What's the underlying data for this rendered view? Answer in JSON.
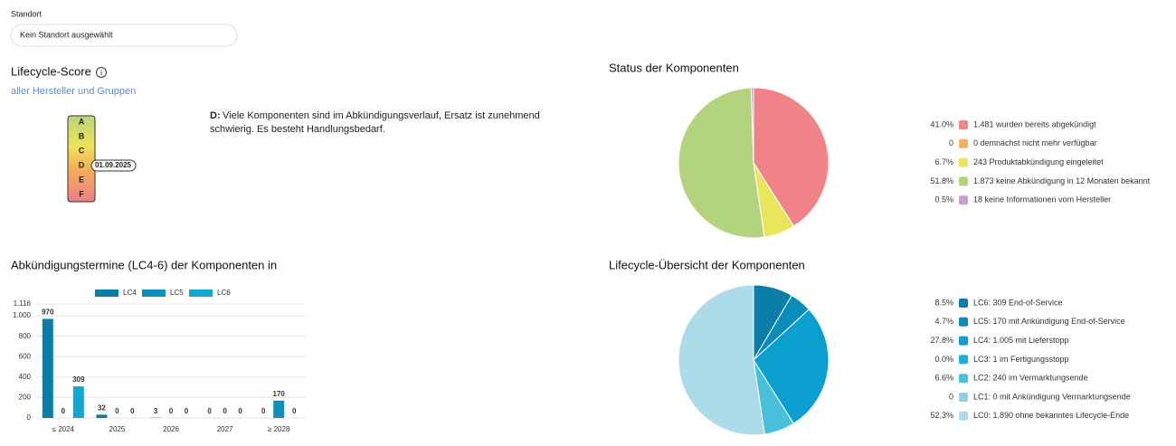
{
  "filter": {
    "label": "Standort",
    "value": "Kein Standort ausgewählt"
  },
  "score": {
    "title": "Lifecycle-Score",
    "subtitle": "aller Hersteller und Gruppen",
    "grades": [
      "A",
      "B",
      "C",
      "D",
      "E",
      "F"
    ],
    "current": "D",
    "date": "01.09.2025",
    "description": {
      "grade": "D:",
      "lines": [
        "Viele Komponenten sind im Abkündigungsverlauf, Ersatz ist zunehmend",
        "schwierig. Es besteht Handlungsbedarf."
      ]
    }
  },
  "chart_data": [
    {
      "type": "bar",
      "title": "Abkündigungstermine (LC4-6) der Komponenten in",
      "categories": [
        "≤ 2024",
        "2025",
        "2026",
        "2027",
        "≥ 2028"
      ],
      "series": [
        {
          "name": "LC4",
          "color": "#0a7ea8",
          "values": [
            970,
            32,
            3,
            0,
            0
          ]
        },
        {
          "name": "LC5",
          "color": "#0b8fbb",
          "values": [
            0,
            0,
            0,
            0,
            170
          ]
        },
        {
          "name": "LC6",
          "color": "#13a6d0",
          "values": [
            309,
            0,
            0,
            0,
            0
          ]
        }
      ],
      "ylim": [
        0,
        1116
      ],
      "yticks": [
        0,
        200,
        400,
        600,
        800,
        {
          "value": 1000,
          "label": "1.000"
        },
        {
          "value": 1116,
          "label": "1.116"
        }
      ],
      "grid": true
    },
    {
      "type": "pie",
      "title": "Status der Komponenten",
      "categories": [
        "1.481 wurden bereits abgekündigt",
        "0 demnächst nicht mehr verfügbar",
        "243 Produktabkündigung eingeleitet",
        "1.873 keine Abkündigung in 12 Monaten bekannt",
        "18 keine Informationen vom Hersteller"
      ],
      "values": [
        41.0,
        0,
        6.7,
        51.8,
        0.5
      ],
      "value_labels": [
        "41.0%",
        "0",
        "6.7%",
        "51.8%",
        "0.5%"
      ],
      "colors": [
        "#ef8387",
        "#f5b25a",
        "#e9e65c",
        "#b4d37e",
        "#c7a0d4"
      ]
    },
    {
      "type": "pie",
      "title": "Lifecycle-Übersicht der Komponenten",
      "categories": [
        "LC6: 309 End-of-Service",
        "LC5: 170 mit Ankündigung End-of-Service",
        "LC4: 1.005 mit Lieferstopp",
        "LC3: 1 im Fertigungsstopp",
        "LC2: 240 im Vermarktungsende",
        "LC1: 0 mit Ankündigung Vermarktungsende",
        "LC0: 1.890 ohne bekanntes Lifecycle-Ende"
      ],
      "values": [
        8.5,
        4.7,
        27.8,
        0.0,
        6.6,
        0,
        52.3
      ],
      "value_labels": [
        "8.5%",
        "4.7%",
        "27.8%",
        "0.0%",
        "6.6%",
        "0",
        "52.3%"
      ],
      "colors": [
        "#0a7ea8",
        "#0b8cb8",
        "#0a9fcf",
        "#1ab0d8",
        "#48c0dd",
        "#8dd0e6",
        "#acdcea"
      ]
    }
  ]
}
